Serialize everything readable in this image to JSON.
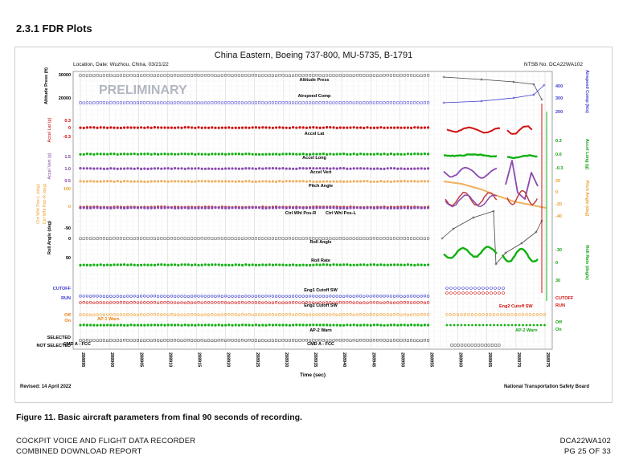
{
  "section_title": "2.3.1  FDR Plots",
  "chart": {
    "title": "China Eastern, Boeing 737-800, MU-5735, B-1791",
    "location_date": "Location, Date: Wuzhou, China, 03/21/22",
    "ntsb_no": "NTSB No. DCA22WA102",
    "watermark": "PRELIMINARY",
    "revised": "Revised: 14 April 2022",
    "agency": "National Transportation Safety Board"
  },
  "chart_data": {
    "type": "line",
    "xlabel": "Time (sec)",
    "x_ticks": [
      "288895",
      "288900",
      "288905",
      "288910",
      "288915",
      "288920",
      "288925",
      "288930",
      "288935",
      "288940",
      "288945",
      "288950",
      "288955",
      "288960",
      "288965",
      "288970",
      "288975"
    ],
    "left_axes": [
      {
        "label": "Altitude Press (ft)",
        "ticks": [
          "30000",
          "20000"
        ],
        "color": "#000000"
      },
      {
        "label": "Accel Lat (g)",
        "ticks": [
          "0.3",
          "0",
          "-0.3"
        ],
        "color": "#cc0000"
      },
      {
        "label": "Accel Vert (g)",
        "ticks": [
          "1.5",
          "1.0",
          "0.5"
        ],
        "color": "#7b3f9e"
      },
      {
        "label": "Ctrl Whl Pos-R (deg)",
        "ticks": [
          "100",
          "0"
        ],
        "color": "#e8a030"
      },
      {
        "label": "Ctrl Whl Pos-L (deg)",
        "ticks": [],
        "color": "#e8a030"
      },
      {
        "label": "Roll Angle (deg)",
        "ticks": [
          "-90",
          "0",
          "90"
        ],
        "color": "#000000"
      }
    ],
    "right_axes": [
      {
        "label": "Airspeed Comp (kts)",
        "ticks": [
          "400",
          "300",
          "200"
        ],
        "color": "#3a3ad0"
      },
      {
        "label": "Accel Long (g)",
        "ticks": [
          "0.3",
          "0.0",
          "-0.3"
        ],
        "color": "#10a010"
      },
      {
        "label": "Pitch Angle (deg)",
        "ticks": [
          "20",
          "0",
          "-20",
          "-40"
        ],
        "color": "#e8a030"
      },
      {
        "label": "Roll Rate (deg/s)",
        "ticks": [
          "-30",
          "0",
          "30"
        ],
        "color": "#10a010"
      }
    ],
    "series": [
      {
        "name": "Altitude Press",
        "color": "#444444"
      },
      {
        "name": "Airspeed Comp",
        "color": "#3a3ad0"
      },
      {
        "name": "Accel Lat",
        "color": "#d01010"
      },
      {
        "name": "Accel Long",
        "color": "#10b010"
      },
      {
        "name": "Accel Vert",
        "color": "#8a4ab0"
      },
      {
        "name": "Pitch Angle",
        "color": "#f0b060"
      },
      {
        "name": "Ctrl Whl Pos-R",
        "color": "#c04040"
      },
      {
        "name": "Ctrl Whl Pos-L",
        "color": "#8a4ab0"
      },
      {
        "name": "Roll Angle",
        "color": "#444444"
      },
      {
        "name": "Roll Rate",
        "color": "#10b010"
      },
      {
        "name": "Eng1 Cutoff SW",
        "color": "#3a3ad0"
      },
      {
        "name": "Eng2 Cutoff SW",
        "color": "#d01010"
      },
      {
        "name": "AP-1 Warn",
        "color": "#f0a030"
      },
      {
        "name": "AP-2 Warn",
        "color": "#10b010"
      },
      {
        "name": "CMD A - FCC",
        "color": "#333333"
      }
    ],
    "state_labels": {
      "eng_left": [
        "CUTOFF",
        "RUN"
      ],
      "eng_right": [
        "CUTOFF",
        "RUN"
      ],
      "ap_left": [
        "Off",
        "On"
      ],
      "ap_right": [
        "Off",
        "On"
      ],
      "cmd_left": [
        "SELECTED",
        "NOT SELECTED"
      ]
    },
    "annotations": [
      "AP-1 Warn",
      "AP-2 Warn",
      "Eng2 Cutoff SW",
      "AP-2 Warn"
    ]
  },
  "caption": "Figure 11. Basic aircraft parameters from final 90 seconds of recording.",
  "footer": {
    "left_line1": "COCKPIT VOICE AND FLIGHT DATA RECORDER",
    "left_line2": "COMBINED DOWNLOAD REPORT",
    "right_line1": "DCA22WA102",
    "right_line2": "PG 25 OF 33"
  }
}
